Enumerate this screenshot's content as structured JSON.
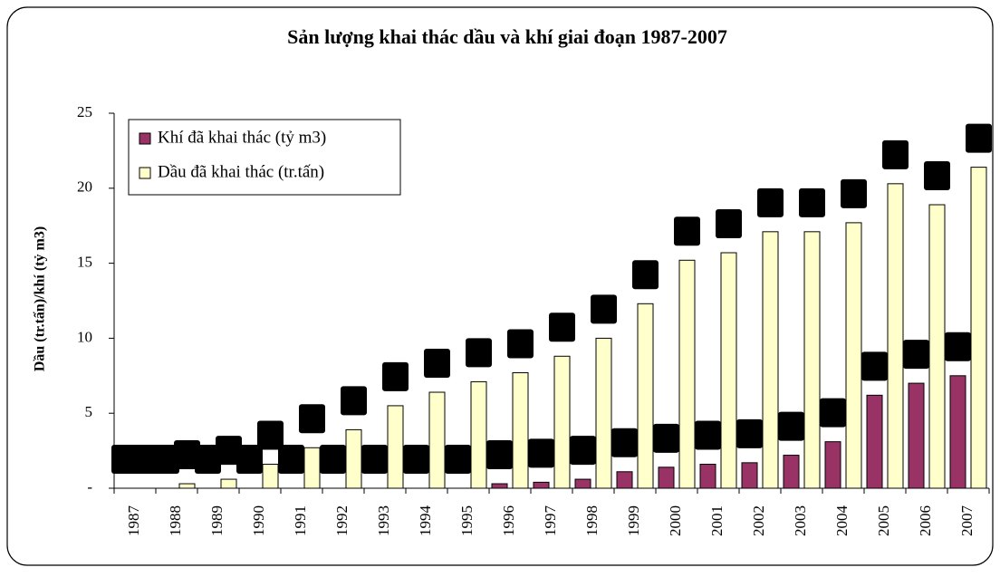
{
  "chart_data": {
    "type": "bar",
    "title": "Sản lượng khai thác dầu và khí giai đoạn 1987-2007",
    "y_label": "Dầu (tr.tấn)/khí (tỷ m3)",
    "categories": [
      "1987",
      "1988",
      "1989",
      "1990",
      "1991",
      "1992",
      "1993",
      "1994",
      "1995",
      "1996",
      "1997",
      "1998",
      "1999",
      "2000",
      "2001",
      "2002",
      "2003",
      "2004",
      "2005",
      "2006",
      "2007"
    ],
    "series": [
      {
        "name": "Khí đã khai thác (tỷ m3)",
        "color": "#993366",
        "values": [
          0,
          0,
          0,
          0,
          0,
          0,
          0,
          0,
          0,
          0.3,
          0.4,
          0.6,
          1.1,
          1.4,
          1.6,
          1.7,
          2.2,
          3.1,
          6.2,
          7.0,
          7.5
        ]
      },
      {
        "name": "Dầu đã khai thác (tr.tấn)",
        "color": "#ffffcc",
        "values": [
          0,
          0.3,
          0.6,
          1.6,
          2.7,
          3.9,
          5.5,
          6.4,
          7.1,
          7.7,
          8.8,
          10.0,
          12.3,
          15.2,
          15.7,
          17.1,
          17.1,
          17.7,
          20.3,
          18.9,
          21.4
        ]
      }
    ],
    "ylim": [
      0,
      25
    ],
    "yticks": [
      {
        "value": 0,
        "label": "-"
      },
      5,
      10,
      15,
      20,
      25
    ],
    "legend": "top-left"
  }
}
